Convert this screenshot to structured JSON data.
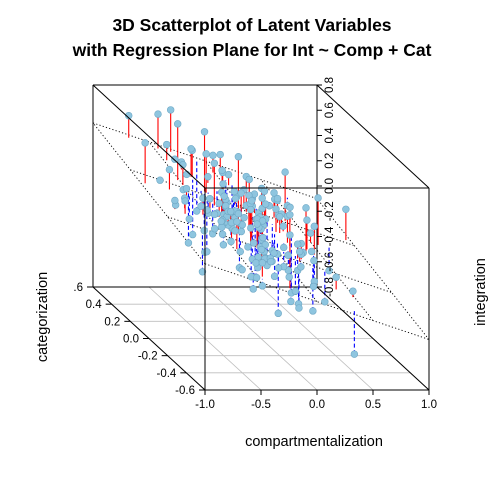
{
  "chart_data": {
    "type": "scatter",
    "title": "3D Scatterplot of Latent Variables\nwith Regression Plane for Int ~  Comp + Cat",
    "title_lines": [
      "3D Scatterplot of Latent Variables",
      "with Regression Plane for Int ~  Comp + Cat"
    ],
    "xlabel": "compartmentalization",
    "ylabel": "categorization",
    "zlabel": "integration",
    "xlim": [
      -1.0,
      1.0
    ],
    "ylim": [
      -0.6,
      0.6
    ],
    "zlim": [
      -0.8,
      0.8
    ],
    "x_ticks": [
      "-1.0",
      "-0.5",
      "0.0",
      "0.5",
      "1.0"
    ],
    "y_ticks": [
      "-0.6",
      "-0.4",
      "-0.2",
      "0.0",
      "0.2",
      "0.4",
      "0.6"
    ],
    "y_ticks_shown": [
      "-0.6",
      "-0.4",
      "-0.2",
      "0.0",
      "0.2",
      "0.4",
      ".6"
    ],
    "z_ticks": [
      "-0.8",
      "-0.6",
      "-0.4",
      "-0.2",
      "0.0",
      "0.2",
      "0.4",
      "0.6",
      "0.8"
    ],
    "regression": {
      "intercept": 0.05,
      "b_comp": -0.3,
      "b_cat": 0.25
    },
    "colors": {
      "point": "#8ec5df",
      "point_edge": "#6fa9c6",
      "above_drop": "#ff0000",
      "below_drop": "#0000ff",
      "plane": "#000000",
      "box": "#000000",
      "grid": "#bebebe"
    },
    "grid": true,
    "points_approx": "approximately 200 points clustered near the regression plane; drop lines red above plane, blue dashed below"
  }
}
